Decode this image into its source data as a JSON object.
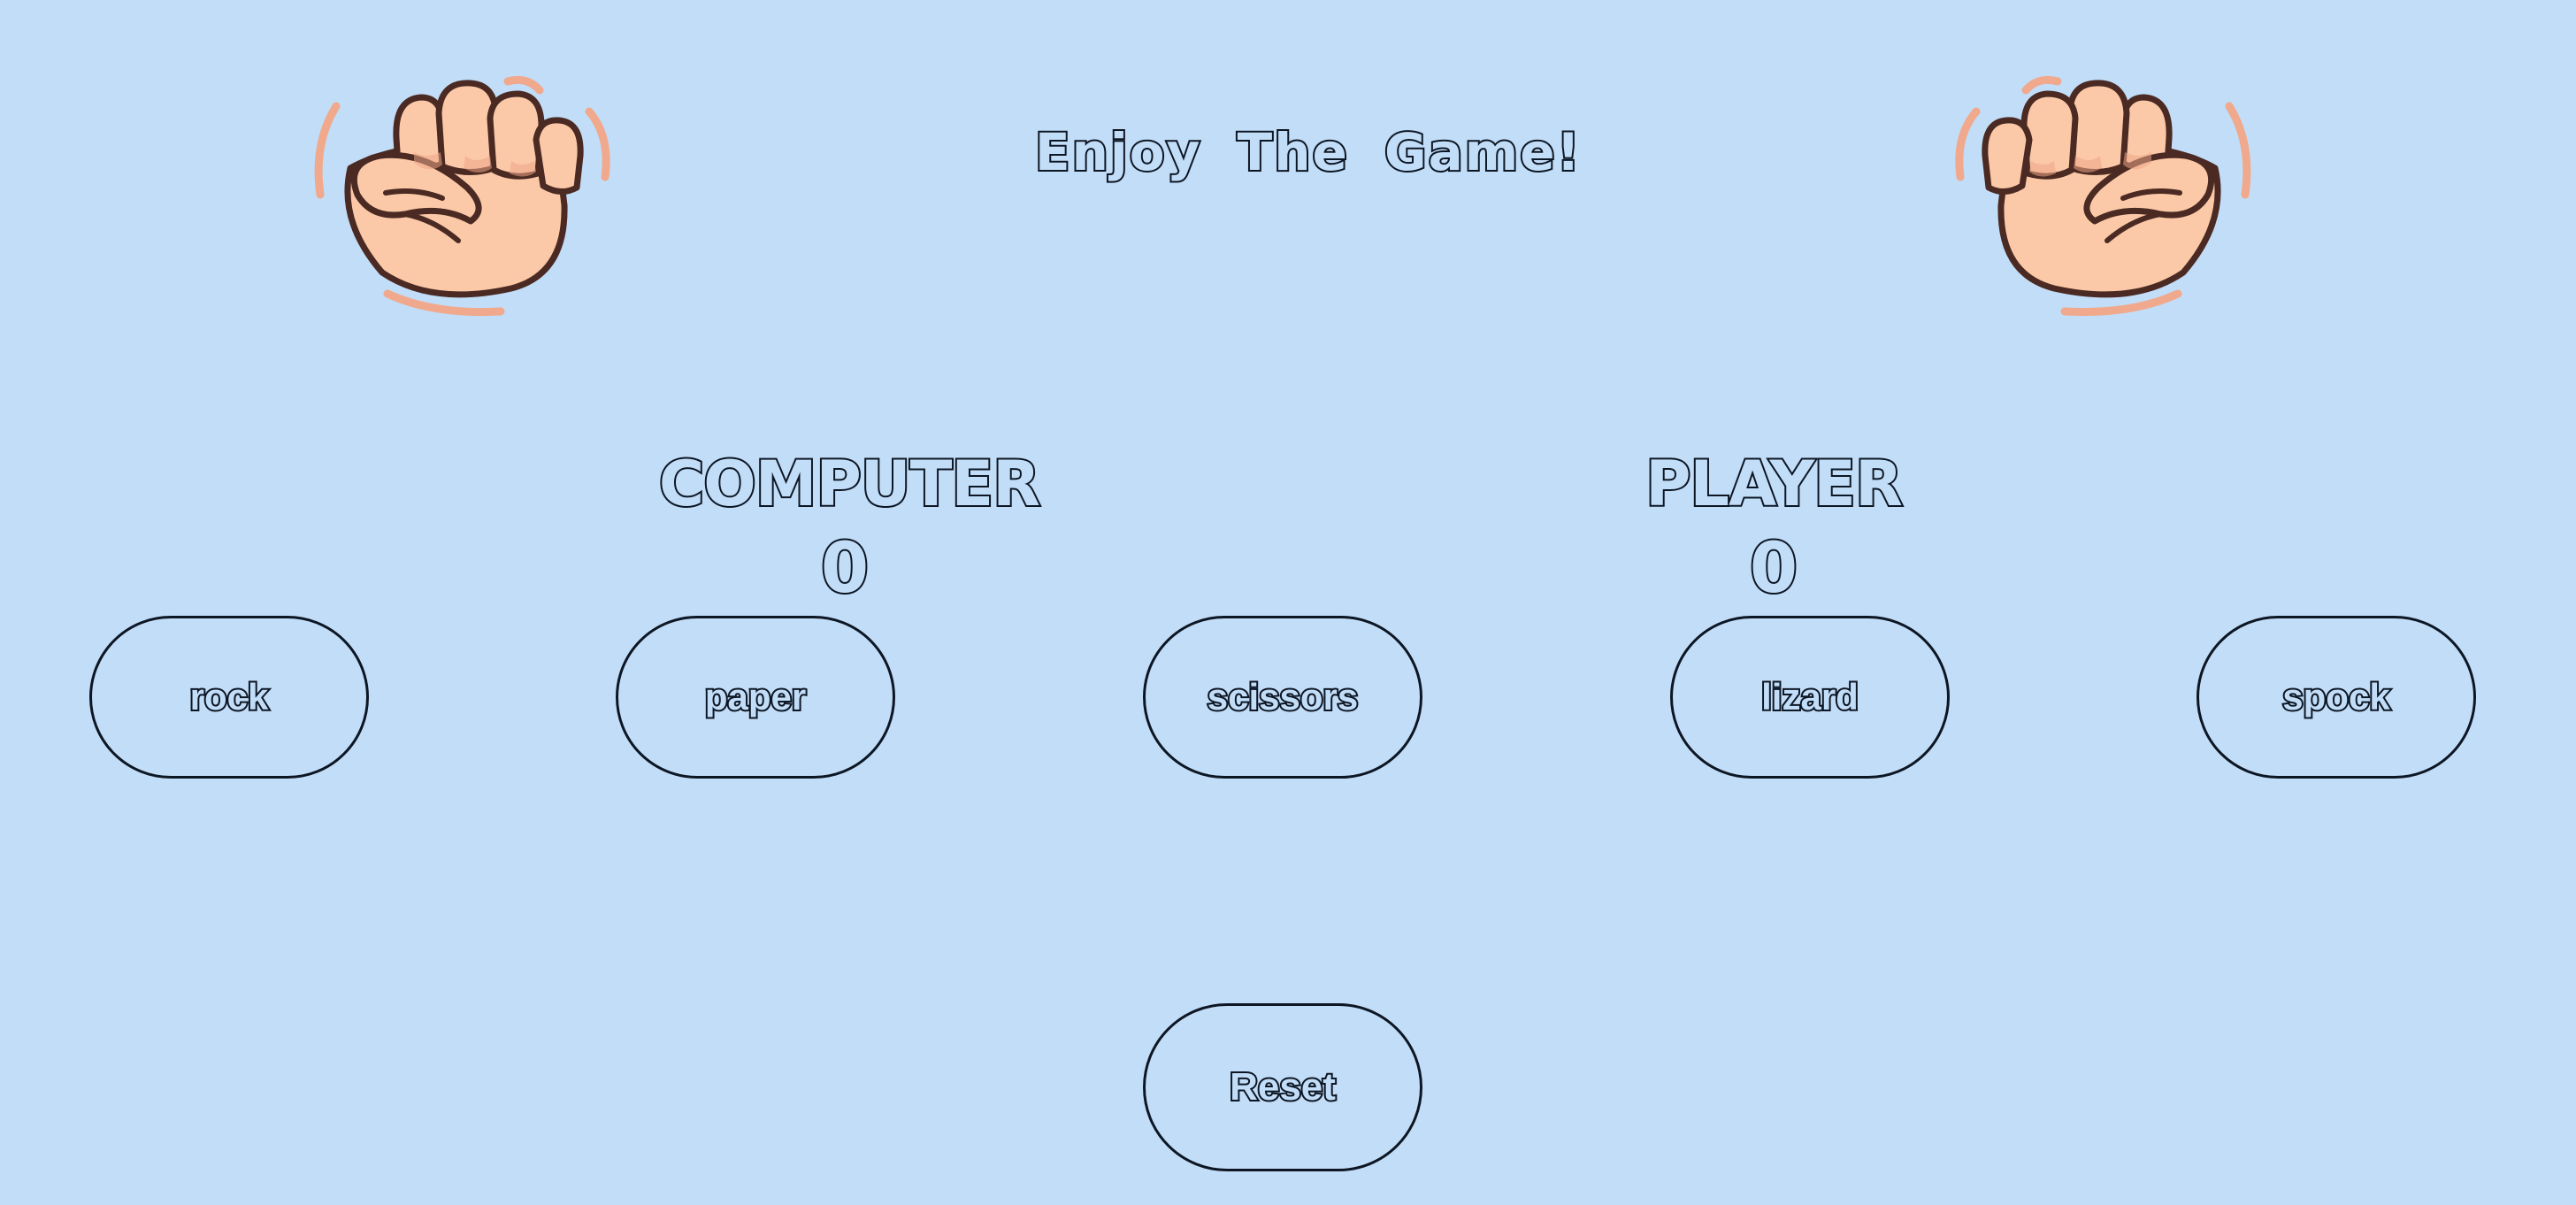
{
  "game": {
    "title": "Enjoy The Game!",
    "computer_label": "COMPUTER",
    "player_label": "PLAYER",
    "computer_score": "0",
    "player_score": "0"
  },
  "choices": [
    {
      "label": "rock"
    },
    {
      "label": "paper"
    },
    {
      "label": "scissors"
    },
    {
      "label": "lizard"
    },
    {
      "label": "spock"
    }
  ],
  "reset_label": "Reset",
  "icons": {
    "computer_hand": "fist-icon",
    "player_hand": "fist-icon"
  },
  "colors": {
    "background": "#c2ddf8",
    "outline": "#0d1623",
    "skin": "#fcc9a8",
    "skin_shadow": "#eda586",
    "motion_lines": "#f0a98c"
  }
}
